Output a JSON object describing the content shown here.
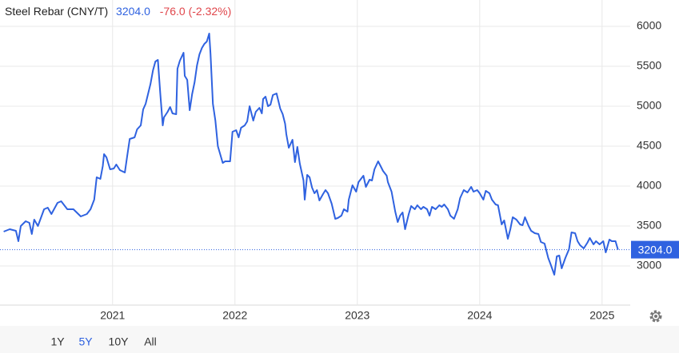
{
  "chart_data": {
    "type": "line",
    "title": "Steel Rebar (CNY/T)",
    "price": "3204.0",
    "change": "-76.0 (-2.32%)",
    "color": "#2f62e0",
    "change_color": "#e0464b",
    "x": [
      2020.11,
      2020.16,
      2020.21,
      2020.23,
      2020.25,
      2020.29,
      2020.32,
      2020.34,
      2020.36,
      2020.39,
      2020.44,
      2020.47,
      2020.5,
      2020.55,
      2020.58,
      2020.63,
      2020.68,
      2020.74,
      2020.79,
      2020.82,
      2020.85,
      2020.87,
      2020.9,
      2020.92,
      2020.93,
      2020.95,
      2020.98,
      2021.01,
      2021.03,
      2021.06,
      2021.1,
      2021.12,
      2021.14,
      2021.18,
      2021.2,
      2021.23,
      2021.25,
      2021.27,
      2021.31,
      2021.33,
      2021.35,
      2021.37,
      2021.39,
      2021.41,
      2021.42,
      2021.45,
      2021.47,
      2021.49,
      2021.52,
      2021.53,
      2021.55,
      2021.58,
      2021.59,
      2021.61,
      2021.63,
      2021.65,
      2021.67,
      2021.69,
      2021.71,
      2021.73,
      2021.75,
      2021.77,
      2021.79,
      2021.8,
      2021.82,
      2021.84,
      2021.86,
      2021.9,
      2021.92,
      2021.96,
      2021.98,
      2022.01,
      2022.03,
      2022.05,
      2022.08,
      2022.1,
      2022.12,
      2022.15,
      2022.17,
      2022.2,
      2022.22,
      2022.23,
      2022.25,
      2022.27,
      2022.29,
      2022.31,
      2022.34,
      2022.37,
      2022.39,
      2022.41,
      2022.42,
      2022.44,
      2022.47,
      2022.49,
      2022.51,
      2022.53,
      2022.56,
      2022.57,
      2022.59,
      2022.61,
      2022.63,
      2022.65,
      2022.67,
      2022.69,
      2022.72,
      2022.74,
      2022.76,
      2022.79,
      2022.82,
      2022.84,
      2022.87,
      2022.89,
      2022.92,
      2022.93,
      2022.96,
      2022.99,
      2023.01,
      2023.05,
      2023.07,
      2023.1,
      2023.12,
      2023.14,
      2023.17,
      2023.19,
      2023.21,
      2023.24,
      2023.25,
      2023.28,
      2023.31,
      2023.33,
      2023.35,
      2023.37,
      2023.39,
      2023.42,
      2023.44,
      2023.47,
      2023.49,
      2023.52,
      2023.54,
      2023.57,
      2023.59,
      2023.61,
      2023.64,
      2023.67,
      2023.69,
      2023.71,
      2023.74,
      2023.76,
      2023.79,
      2023.82,
      2023.84,
      2023.87,
      2023.9,
      2023.93,
      2023.95,
      2023.98,
      2024.0,
      2024.03,
      2024.05,
      2024.08,
      2024.1,
      2024.13,
      2024.15,
      2024.18,
      2024.2,
      2024.23,
      2024.25,
      2024.27,
      2024.3,
      2024.33,
      2024.35,
      2024.37,
      2024.4,
      2024.42,
      2024.45,
      2024.48,
      2024.5,
      2024.53,
      2024.56,
      2024.58,
      2024.61,
      2024.63,
      2024.65,
      2024.67,
      2024.7,
      2024.73,
      2024.75,
      2024.78,
      2024.8,
      2024.82,
      2024.85,
      2024.88,
      2024.9,
      2024.93,
      2024.95,
      2024.98,
      2025.01,
      2025.03,
      2025.06,
      2025.08,
      2025.11,
      2025.13
    ],
    "values": [
      3430,
      3460,
      3440,
      3310,
      3500,
      3560,
      3540,
      3400,
      3580,
      3500,
      3710,
      3730,
      3650,
      3790,
      3810,
      3710,
      3710,
      3620,
      3650,
      3710,
      3830,
      4110,
      4090,
      4250,
      4400,
      4360,
      4210,
      4220,
      4270,
      4200,
      4170,
      4380,
      4590,
      4610,
      4710,
      4760,
      4960,
      5030,
      5280,
      5450,
      5560,
      5580,
      5160,
      4760,
      4860,
      4930,
      4990,
      4910,
      4900,
      5470,
      5570,
      5670,
      5380,
      5330,
      4950,
      5150,
      5300,
      5510,
      5650,
      5730,
      5780,
      5810,
      5910,
      5660,
      5030,
      4820,
      4500,
      4290,
      4310,
      4310,
      4680,
      4700,
      4610,
      4730,
      4760,
      4810,
      5000,
      4820,
      4930,
      4980,
      4910,
      5090,
      5120,
      5000,
      5020,
      5140,
      5160,
      4970,
      4900,
      4780,
      4650,
      4480,
      4580,
      4300,
      4490,
      4280,
      4070,
      3830,
      4140,
      4110,
      3980,
      3910,
      3950,
      3820,
      3900,
      3950,
      3910,
      3780,
      3590,
      3600,
      3630,
      3710,
      3680,
      3830,
      4010,
      3930,
      4050,
      4130,
      3990,
      4080,
      4070,
      4210,
      4310,
      4250,
      4190,
      4130,
      4050,
      3930,
      3680,
      3550,
      3630,
      3670,
      3460,
      3650,
      3750,
      3710,
      3760,
      3710,
      3740,
      3710,
      3630,
      3740,
      3710,
      3760,
      3740,
      3770,
      3710,
      3630,
      3590,
      3710,
      3850,
      3950,
      3920,
      3990,
      3930,
      3950,
      3910,
      3830,
      3940,
      3910,
      3830,
      3770,
      3760,
      3520,
      3570,
      3340,
      3460,
      3610,
      3580,
      3520,
      3510,
      3610,
      3500,
      3440,
      3410,
      3400,
      3300,
      3280,
      3100,
      3020,
      2890,
      3120,
      3130,
      2970,
      3100,
      3210,
      3420,
      3410,
      3310,
      3260,
      3220,
      3290,
      3350,
      3270,
      3310,
      3270,
      3310,
      3170,
      3330,
      3310,
      3310,
      3204
    ],
    "ylim": [
      2510,
      6330
    ],
    "yticks": [
      3000,
      3500,
      4000,
      4500,
      5000,
      5500,
      6000
    ],
    "xlim": [
      2020.08,
      2025.23
    ],
    "xticks": [
      2021,
      2022,
      2023,
      2024,
      2025
    ],
    "grid": true,
    "ranges": [
      "1Y",
      "5Y",
      "10Y",
      "All"
    ],
    "selected_range": "5Y"
  }
}
